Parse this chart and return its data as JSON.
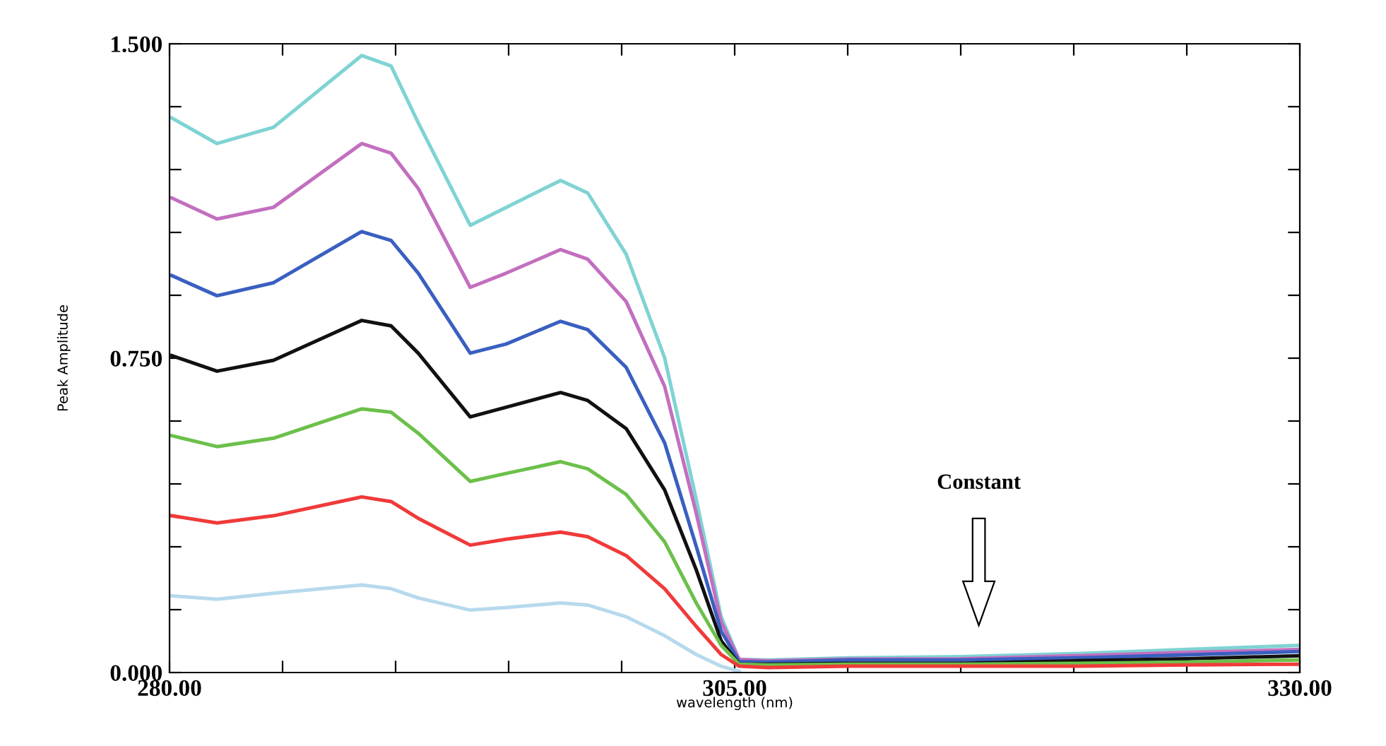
{
  "chart_data": {
    "type": "line",
    "xlabel": "wavelength (nm)",
    "ylabel": "Peak Amplitude",
    "x": [
      280.1,
      282.1,
      284.6,
      288.5,
      289.8,
      291.0,
      293.3,
      294.9,
      297.3,
      298.5,
      300.2,
      301.9,
      303.3,
      304.4,
      305.2,
      306.5,
      310,
      315,
      320,
      325,
      330
    ],
    "series": [
      {
        "color": "#7fd3d3",
        "values": [
          1.323,
          1.262,
          1.301,
          1.472,
          1.447,
          1.312,
          1.067,
          1.11,
          1.174,
          1.144,
          0.998,
          0.751,
          0.413,
          0.133,
          0.031,
          0.03,
          0.035,
          0.038,
          0.045,
          0.055,
          0.065
        ]
      },
      {
        "color": "#c36fbf",
        "values": [
          1.132,
          1.082,
          1.11,
          1.262,
          1.239,
          1.155,
          0.919,
          0.953,
          1.009,
          0.986,
          0.885,
          0.683,
          0.38,
          0.121,
          0.031,
          0.028,
          0.032,
          0.033,
          0.04,
          0.048,
          0.055
        ]
      },
      {
        "color": "#3a5fc0",
        "values": [
          0.947,
          0.899,
          0.93,
          1.052,
          1.031,
          0.953,
          0.762,
          0.784,
          0.838,
          0.818,
          0.728,
          0.548,
          0.301,
          0.099,
          0.026,
          0.025,
          0.03,
          0.03,
          0.035,
          0.042,
          0.05
        ]
      },
      {
        "color": "#111111",
        "values": [
          0.756,
          0.719,
          0.745,
          0.84,
          0.827,
          0.762,
          0.61,
          0.633,
          0.668,
          0.649,
          0.582,
          0.436,
          0.245,
          0.076,
          0.02,
          0.02,
          0.022,
          0.022,
          0.028,
          0.033,
          0.04
        ]
      },
      {
        "color": "#6cc04a",
        "values": [
          0.565,
          0.539,
          0.559,
          0.629,
          0.621,
          0.571,
          0.456,
          0.475,
          0.503,
          0.486,
          0.425,
          0.312,
          0.166,
          0.065,
          0.02,
          0.018,
          0.02,
          0.02,
          0.022,
          0.025,
          0.03
        ]
      },
      {
        "color": "#f03a3a",
        "values": [
          0.374,
          0.357,
          0.374,
          0.419,
          0.408,
          0.368,
          0.304,
          0.318,
          0.335,
          0.324,
          0.279,
          0.2,
          0.11,
          0.043,
          0.015,
          0.012,
          0.015,
          0.015,
          0.015,
          0.018,
          0.02
        ]
      },
      {
        "color": "#b7d9ec",
        "values": [
          0.183,
          0.175,
          0.189,
          0.209,
          0.2,
          0.178,
          0.149,
          0.155,
          0.166,
          0.161,
          0.133,
          0.088,
          0.043,
          0.015,
          0.003,
          null,
          null,
          null,
          null,
          null,
          null
        ]
      }
    ],
    "xlim": [
      280,
      330
    ],
    "xticks": [
      {
        "value": 280,
        "label": "280.00"
      },
      {
        "value": 285,
        "label": null
      },
      {
        "value": 290,
        "label": null
      },
      {
        "value": 295,
        "label": null
      },
      {
        "value": 300,
        "label": null
      },
      {
        "value": 305,
        "label": "305.00"
      },
      {
        "value": 310,
        "label": null
      },
      {
        "value": 315,
        "label": null
      },
      {
        "value": 320,
        "label": null
      },
      {
        "value": 325,
        "label": null
      },
      {
        "value": 330,
        "label": "330.00"
      }
    ],
    "ylim": [
      0,
      1.5
    ],
    "yticks": [
      {
        "value": 0,
        "label": "0.000"
      },
      {
        "value": 0.15,
        "label": null
      },
      {
        "value": 0.3,
        "label": null
      },
      {
        "value": 0.45,
        "label": null
      },
      {
        "value": 0.6,
        "label": null
      },
      {
        "value": 0.75,
        "label": "0.750"
      },
      {
        "value": 0.9,
        "label": null
      },
      {
        "value": 1.05,
        "label": null
      },
      {
        "value": 1.2,
        "label": null
      },
      {
        "value": 1.35,
        "label": null
      },
      {
        "value": 1.5,
        "label": "1.500"
      }
    ],
    "annotations": [
      "Constant"
    ],
    "grid": false,
    "legend": false
  }
}
